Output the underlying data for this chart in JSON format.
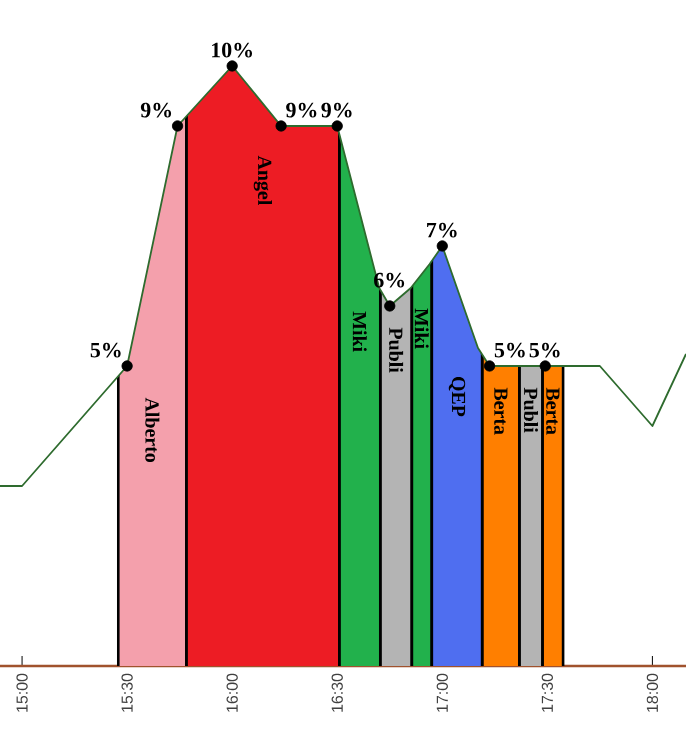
{
  "chart_data": {
    "type": "line",
    "xlim": [
      14.895,
      18.16
    ],
    "ylim": [
      0,
      11.1
    ],
    "tick_labels": "x",
    "xticks": [
      {
        "value": 15,
        "label": "15:00"
      },
      {
        "value": 15.5,
        "label": "15:30"
      },
      {
        "value": 16,
        "label": "16:00"
      },
      {
        "value": 16.5,
        "label": "16:30"
      },
      {
        "value": 17,
        "label": "17:00"
      },
      {
        "value": 17.5,
        "label": "17:30"
      },
      {
        "value": 18,
        "label": "18:00"
      }
    ],
    "series": [
      {
        "type": "line",
        "color": "#2e6b2e",
        "x": [
          14.895,
          15.0,
          15.5,
          15.74,
          16.0,
          16.233,
          16.5,
          16.7,
          16.75,
          16.85,
          16.94,
          17.0,
          17.17,
          17.225,
          17.49,
          17.75,
          18.0,
          18.16
        ],
        "values": [
          3.0,
          3.0,
          5,
          9,
          10,
          9,
          9,
          6.3,
          6,
          6.3,
          6.7,
          7,
          5.3,
          5,
          5,
          5,
          4.0,
          5.2
        ]
      },
      {
        "type": "scatter",
        "color": "#000000",
        "marker": "circle",
        "x": [
          15.5,
          15.74,
          16.0,
          16.233,
          16.5,
          16.75,
          17.0,
          17.225,
          17.49
        ],
        "values": [
          5,
          9,
          10,
          9,
          9,
          6,
          7,
          5,
          5
        ],
        "value_labels": [
          "5%",
          "9%",
          "10%",
          "9%",
          "9%",
          "6%",
          "7%",
          "5%",
          "5%"
        ]
      }
    ],
    "bands": [
      {
        "axis": "x",
        "from": 15.458,
        "to": 15.782,
        "label": "Alberto",
        "color": "#f4a0ac"
      },
      {
        "axis": "x",
        "from": 15.782,
        "to": 16.51,
        "label": "Angel",
        "color": "#ed1c24"
      },
      {
        "axis": "x",
        "from": 16.51,
        "to": 16.705,
        "label": "Miki",
        "color": "#22b14c"
      },
      {
        "axis": "x",
        "from": 16.705,
        "to": 16.855,
        "label": "Publi",
        "color": "#b4b4b4"
      },
      {
        "axis": "x",
        "from": 16.855,
        "to": 16.95,
        "label": "Miki",
        "color": "#22b14c"
      },
      {
        "axis": "x",
        "from": 16.95,
        "to": 17.19,
        "label": "QEP",
        "color": "#4f6ef0"
      },
      {
        "axis": "x",
        "from": 17.19,
        "to": 17.367,
        "label": "Berta",
        "color": "#ff7f00"
      },
      {
        "axis": "x",
        "from": 17.367,
        "to": 17.477,
        "label": "Publi",
        "color": "#b4b4b4"
      },
      {
        "axis": "x",
        "from": 17.477,
        "to": 17.575,
        "label": "Berta",
        "color": "#ff7f00"
      }
    ]
  }
}
